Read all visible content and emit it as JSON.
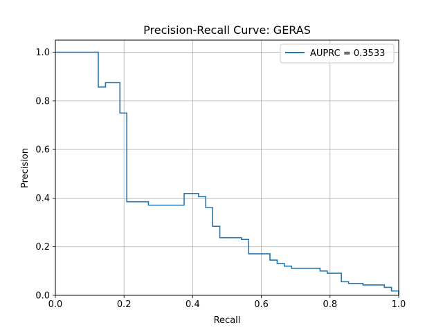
{
  "chart_data": {
    "type": "line",
    "title": "Precision-Recall Curve: GERAS",
    "xlabel": "Recall",
    "ylabel": "Precision",
    "xlim": [
      0.0,
      1.0
    ],
    "ylim": [
      0.0,
      1.05
    ],
    "xticks": [
      0.0,
      0.2,
      0.4,
      0.6,
      0.8,
      1.0
    ],
    "yticks": [
      0.0,
      0.2,
      0.4,
      0.6,
      0.8,
      1.0
    ],
    "xtick_labels": [
      "0.0",
      "0.2",
      "0.4",
      "0.6",
      "0.8",
      "1.0"
    ],
    "ytick_labels": [
      "0.0",
      "0.2",
      "0.4",
      "0.6",
      "0.8",
      "1.0"
    ],
    "grid": true,
    "legend_position": "top-right",
    "series": [
      {
        "name": "AUPRC = 0.3533",
        "color": "#1f77b4",
        "step": "post",
        "x": [
          0.0,
          0.125,
          0.125,
          0.146,
          0.146,
          0.188,
          0.188,
          0.208,
          0.208,
          0.271,
          0.271,
          0.375,
          0.375,
          0.417,
          0.417,
          0.438,
          0.438,
          0.458,
          0.458,
          0.479,
          0.479,
          0.542,
          0.542,
          0.563,
          0.563,
          0.625,
          0.625,
          0.646,
          0.646,
          0.667,
          0.667,
          0.688,
          0.688,
          0.771,
          0.771,
          0.792,
          0.792,
          0.833,
          0.833,
          0.854,
          0.854,
          0.896,
          0.896,
          0.958,
          0.958,
          0.979,
          0.979,
          1.0,
          1.0
        ],
        "y": [
          1.0,
          1.0,
          0.857,
          0.857,
          0.875,
          0.875,
          0.75,
          0.75,
          0.385,
          0.385,
          0.371,
          0.371,
          0.419,
          0.419,
          0.406,
          0.406,
          0.361,
          0.361,
          0.284,
          0.284,
          0.237,
          0.237,
          0.23,
          0.23,
          0.171,
          0.171,
          0.145,
          0.145,
          0.131,
          0.131,
          0.12,
          0.12,
          0.111,
          0.111,
          0.1,
          0.1,
          0.091,
          0.091,
          0.056,
          0.056,
          0.049,
          0.049,
          0.043,
          0.043,
          0.033,
          0.033,
          0.018,
          0.018,
          0.0
        ]
      }
    ]
  }
}
